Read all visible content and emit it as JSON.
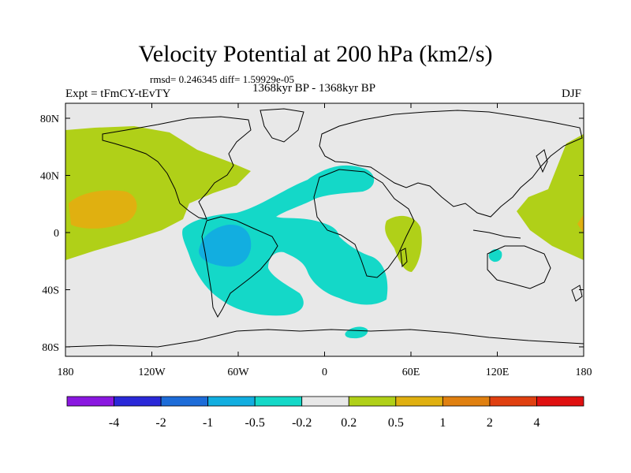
{
  "title": "Velocity Potential at 200 hPa (km2/s)",
  "stats": "rmsd= 0.246345 diff= 1.59929e-05",
  "experiment": "Expt = tFmCY-tEvTY",
  "period": "1368kyr BP - 1368kyr BP",
  "season": "DJF",
  "axes": {
    "x_ticks": [
      "180",
      "120W",
      "60W",
      "0",
      "60E",
      "120E",
      "180"
    ],
    "y_ticks": [
      "80N",
      "40N",
      "0",
      "40S",
      "80S"
    ]
  },
  "colorbar": {
    "colors": [
      "#8a18e0",
      "#2a28d8",
      "#1d6cd8",
      "#12aee0",
      "#14d8c8",
      "#e8e8e8",
      "#b0d018",
      "#e0b010",
      "#e08010",
      "#e04010",
      "#e01010"
    ],
    "labels": [
      "-4",
      "-2",
      "-1",
      "-0.5",
      "-0.2",
      "0.2",
      "0.5",
      "1",
      "2",
      "4"
    ]
  },
  "palette": {
    "background": "#e8e8e8",
    "land_line": "#000000",
    "positive_low": "#b0d018",
    "positive_mid": "#e0b010",
    "positive_high": "#e08010",
    "negative_low": "#14d8c8",
    "negative_mid": "#12aee0"
  }
}
